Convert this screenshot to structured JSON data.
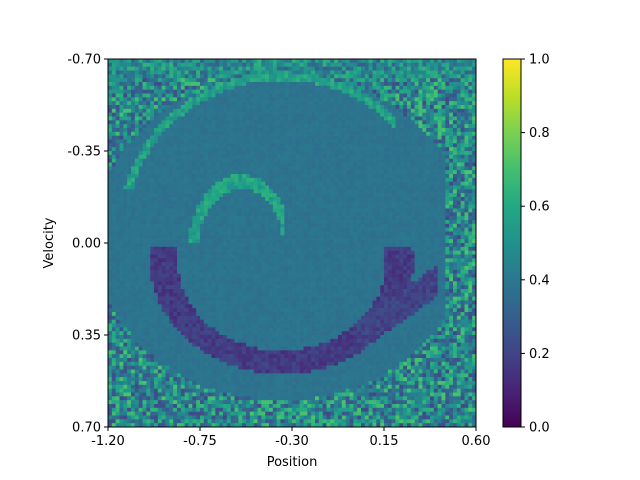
{
  "chart_data": {
    "type": "heatmap",
    "title": "",
    "xlabel": "Position",
    "ylabel": "Velocity",
    "xlim": [
      -1.2,
      0.6
    ],
    "ylim": [
      -0.7,
      0.7
    ],
    "y_axis_inverted": true,
    "x_ticks": [
      "-1.20",
      "-0.75",
      "-0.30",
      "0.15",
      "0.60"
    ],
    "y_ticks": [
      "-0.70",
      "-0.35",
      "0.00",
      "0.35",
      "0.70"
    ],
    "colorbar": {
      "colormap": "viridis",
      "range": [
        0.0,
        1.0
      ],
      "ticks": [
        "0.0",
        "0.2",
        "0.4",
        "0.6",
        "0.8",
        "1.0"
      ]
    },
    "grid_size": [
      96,
      96
    ],
    "features": {
      "background_value": 0.38,
      "noisy_corners": "top-right and bottom-left, values 0.2-0.75",
      "light_band": {
        "value": 0.55,
        "description": "inner bright arc around position -0.6, velocity -0.2"
      },
      "dark_band": {
        "value": 0.12,
        "description": "dark spiral arm from position -0.9, velocity 0.05 to position 0.35, velocity 0.15"
      }
    }
  }
}
